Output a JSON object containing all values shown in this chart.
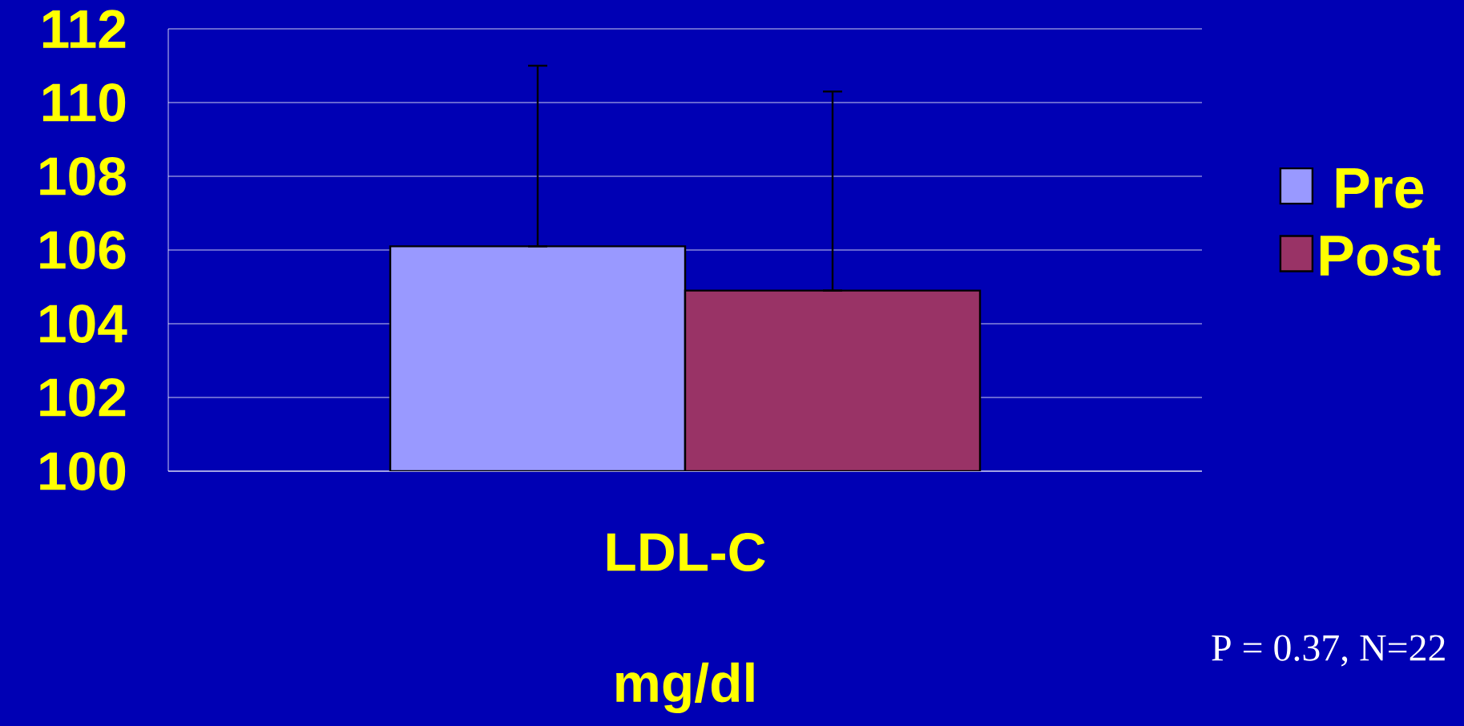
{
  "chart_data": {
    "type": "bar",
    "categories": [
      "LDL-C"
    ],
    "xlabel": "mg/dl",
    "series": [
      {
        "name": "Pre",
        "color": "#9999ff",
        "values": [
          106.1
        ],
        "errors": [
          [
            106.1,
            111.0
          ]
        ]
      },
      {
        "name": "Post",
        "color": "#993366",
        "values": [
          104.9
        ],
        "errors": [
          [
            104.9,
            110.3
          ]
        ]
      }
    ],
    "ylim": [
      100,
      112
    ],
    "yticks": [
      100,
      102,
      104,
      106,
      108,
      110,
      112
    ],
    "grid": "y",
    "legend": "right",
    "annotations": [
      "P = 0.37, N=22"
    ]
  }
}
